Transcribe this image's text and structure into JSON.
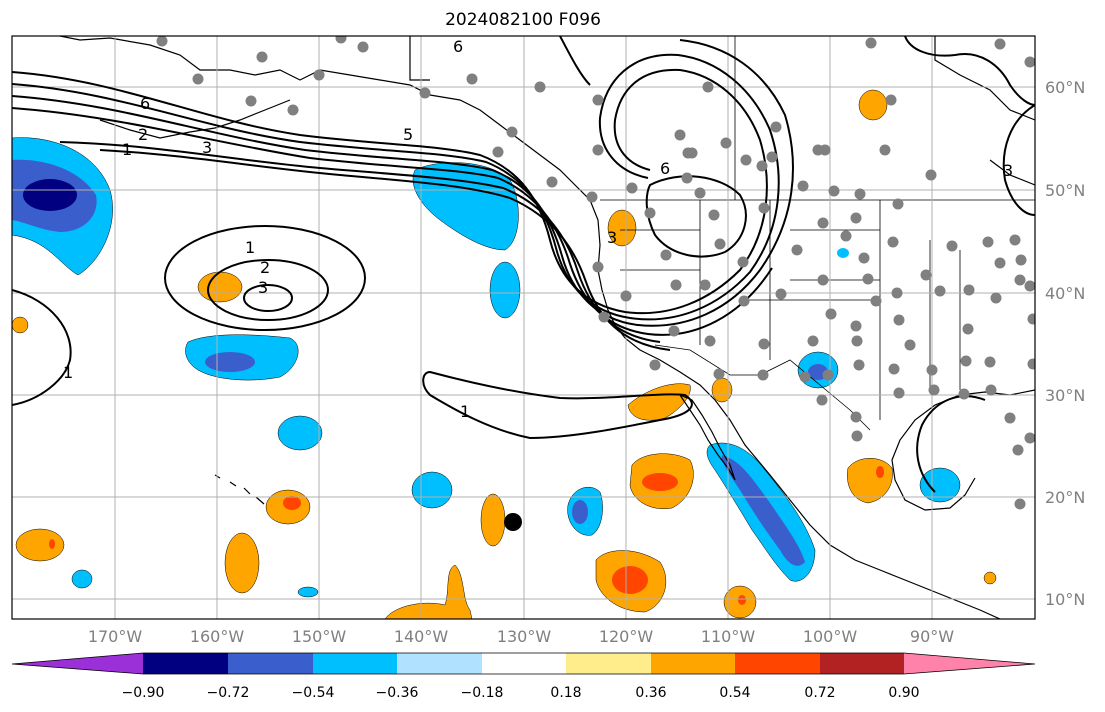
{
  "title": "2024082100 F096",
  "latitude_labels": [
    "60°N",
    "50°N",
    "40°N",
    "30°N",
    "20°N",
    "10°N"
  ],
  "longitude_labels": [
    "170°W",
    "160°W",
    "150°W",
    "140°W",
    "130°W",
    "120°W",
    "110°W",
    "100°W",
    "90°W"
  ],
  "colorbar": {
    "colors": [
      "#9b30d8",
      "#000080",
      "#3a5fcd",
      "#00bfff",
      "#b0e2ff",
      "#ffffff",
      "#ffec8b",
      "#ffa500",
      "#ff4500",
      "#b22222",
      "#ff82ab"
    ],
    "tick_labels": [
      "−0.90",
      "−0.72",
      "−0.54",
      "−0.36",
      "−0.18",
      "0.18",
      "0.36",
      "0.54",
      "0.72",
      "0.90"
    ]
  },
  "contour_labels": [
    "6",
    "6",
    "5",
    "3",
    "2",
    "1",
    "1",
    "2",
    "3",
    "1",
    "1",
    "6",
    "3",
    "3"
  ],
  "colors": {
    "station_marker": "#808080",
    "highlight_marker": "#000000",
    "contour_line": "#000000",
    "gridline": "#b0b0b0"
  }
}
